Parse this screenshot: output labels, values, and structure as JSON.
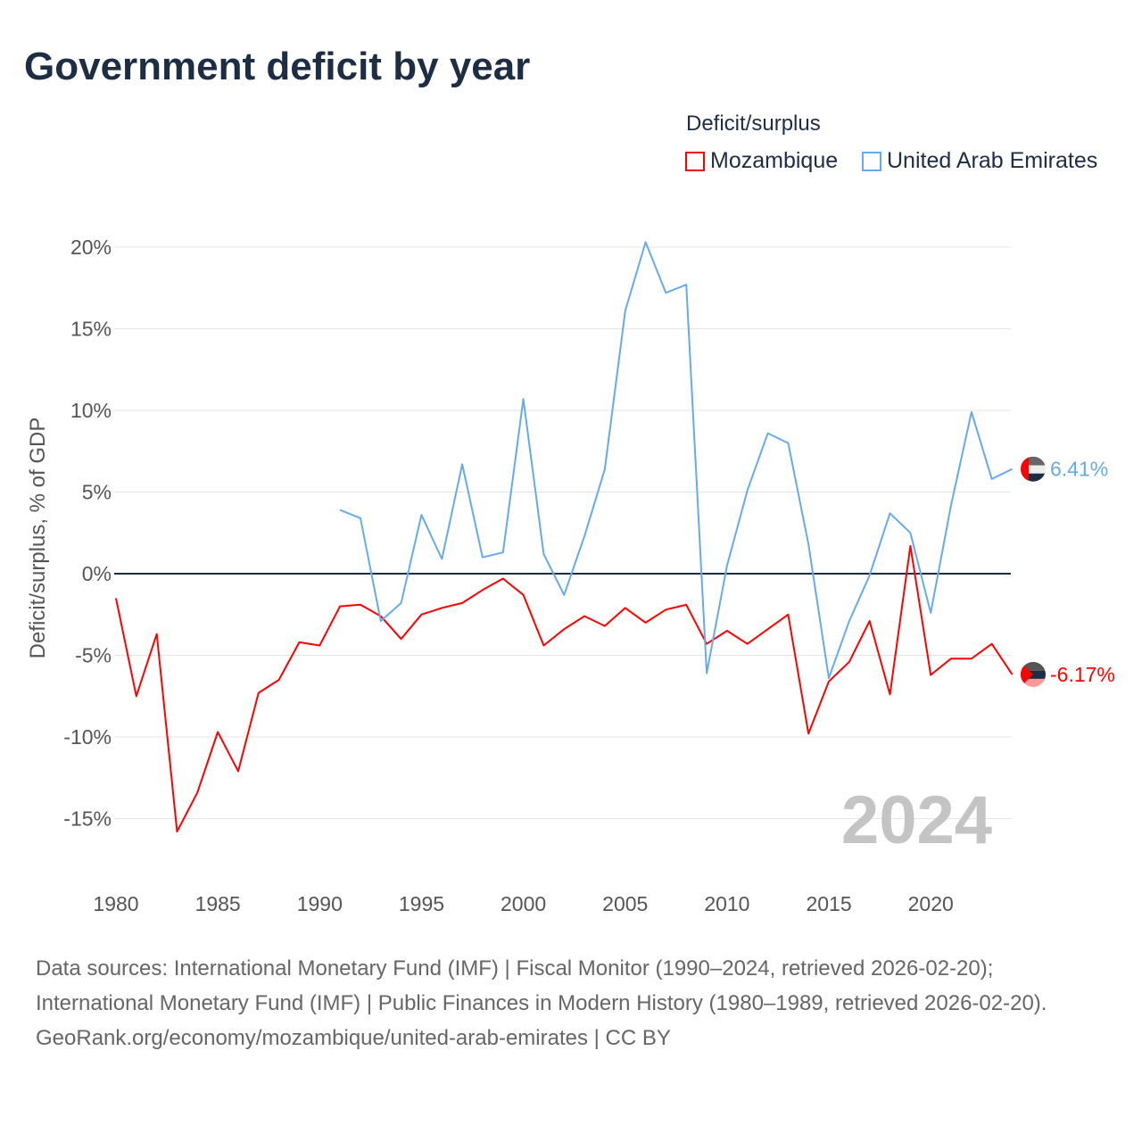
{
  "title": "Government deficit by year",
  "legend": {
    "title": "Deficit/surplus",
    "items": [
      {
        "label": "Mozambique",
        "color": "#ff0000"
      },
      {
        "label": "United Arab Emirates",
        "color": "#66aaee"
      }
    ]
  },
  "chart_data": {
    "type": "line",
    "title": "Government deficit by year",
    "ylabel": "Deficit/surplus, % of GDP",
    "xlabel": "",
    "xlim": [
      1980,
      2024
    ],
    "ylim": [
      -17,
      21
    ],
    "yticks": [
      20,
      15,
      10,
      5,
      0,
      -5,
      -10,
      -15
    ],
    "ytick_labels": [
      "20%",
      "15%",
      "10%",
      "5%",
      "0%",
      "-5%",
      "-10%",
      "-15%"
    ],
    "xticks": [
      1980,
      1985,
      1990,
      1995,
      2000,
      2005,
      2010,
      2015,
      2020
    ],
    "xtick_labels": [
      "1980",
      "1985",
      "1990",
      "1995",
      "2000",
      "2005",
      "2010",
      "2015",
      "2020"
    ],
    "year_watermark": "2024",
    "series": [
      {
        "name": "Mozambique",
        "color": "#ff0000",
        "end_label": "-6.17%",
        "start_year": 1980,
        "values": [
          -1.5,
          -7.5,
          -3.7,
          -15.8,
          -13.4,
          -9.7,
          -12.1,
          -7.3,
          -6.5,
          -4.2,
          -4.4,
          -2.0,
          -1.9,
          -2.6,
          -4.0,
          -2.5,
          -2.1,
          -1.8,
          -1.0,
          -0.3,
          -1.3,
          -4.4,
          -3.4,
          -2.6,
          -3.2,
          -2.1,
          -3.0,
          -2.2,
          -1.9,
          -4.3,
          -3.5,
          -4.3,
          -3.4,
          -2.5,
          -9.8,
          -6.6,
          -5.4,
          -2.9,
          -7.4,
          1.7,
          -6.2,
          -5.2,
          -5.2,
          -4.3,
          -6.17
        ]
      },
      {
        "name": "United Arab Emirates",
        "color": "#66aaee",
        "end_label": "6.41%",
        "start_year": 1991,
        "values": [
          3.9,
          3.4,
          -2.9,
          -1.8,
          3.6,
          0.9,
          6.7,
          1.0,
          1.3,
          10.7,
          1.2,
          -1.3,
          2.3,
          6.4,
          16.1,
          20.3,
          17.2,
          17.7,
          -6.1,
          0.5,
          5.1,
          8.6,
          8.0,
          1.8,
          -6.4,
          -2.9,
          -0.1,
          3.7,
          2.5,
          -2.4,
          4.2,
          9.9,
          5.8,
          6.41
        ]
      }
    ]
  },
  "footer": {
    "sources": "Data sources: International Monetary Fund (IMF) | Fiscal Monitor (1990–2024, retrieved 2026-02-20); International Monetary Fund (IMF) | Public Finances in Modern History (1980–1989, retrieved 2026-02-20).",
    "link": "GeoRank.org/economy/mozambique/united-arab-emirates",
    "license": " | CC BY"
  }
}
